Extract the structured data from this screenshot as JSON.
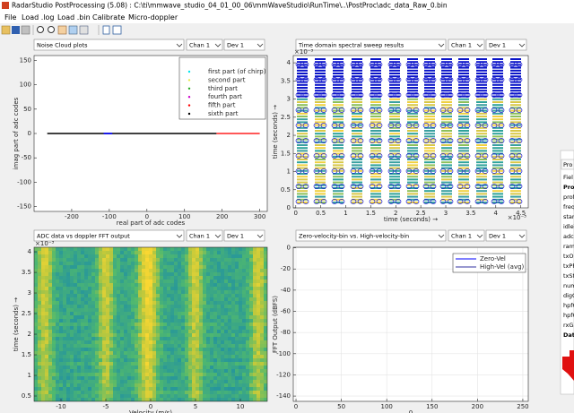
{
  "window": {
    "title": "RadarStudio PostProcessing (5.08) : C:\\ti\\mmwave_studio_04_01_00_06\\mmWaveStudio\\RunTime\\..\\PostProc\\adc_data_Raw_0.bin"
  },
  "menu": [
    "File",
    "Load .log",
    "Load .bin",
    "Calibrate",
    "Micro-doppler"
  ],
  "controls": [
    {
      "selector": "Noise Cloud plots",
      "channel": "Chan 1",
      "device": "Dev 1"
    },
    {
      "selector": "Time domain spectral sweep results",
      "channel": "Chan 1",
      "device": "Dev 1"
    },
    {
      "selector": "ADC data vs doppler FFT output",
      "channel": "Chan 1",
      "device": "Dev 1"
    },
    {
      "selector": "Zero-velocity-bin vs. High-velocity-bin",
      "channel": "Chan 1",
      "device": "Dev 1"
    }
  ],
  "chart_data": [
    {
      "type": "scatter",
      "xlabel": "real part of adc codes",
      "ylabel": "imag part of adc codes",
      "xlim": [
        -300,
        320
      ],
      "ylim": [
        -160,
        160
      ],
      "xticks": [
        -200,
        -100,
        0,
        100,
        200,
        300
      ],
      "yticks": [
        -150,
        -100,
        -50,
        0,
        50,
        100,
        150
      ],
      "legend_entries": [
        {
          "name": "first  part (of chirp)",
          "color": "#00e5ee"
        },
        {
          "name": "second part",
          "color": "#e8e84a"
        },
        {
          "name": "third part",
          "color": "#22aa22"
        },
        {
          "name": "fourth part",
          "color": "#cc00cc"
        },
        {
          "name": "fifth part",
          "color": "#ff0000"
        },
        {
          "name": "sixth part",
          "color": "#000000"
        }
      ],
      "segments": [
        {
          "color": "#000000",
          "x": [
            -265,
            185
          ]
        },
        {
          "color": "#0000ff",
          "x": [
            -115,
            -92
          ]
        },
        {
          "color": "#ff2020",
          "x": [
            185,
            300
          ]
        }
      ]
    },
    {
      "type": "heatmap",
      "xlabel": "time (seconds) →",
      "ylabel": "time (seconds) →",
      "x_exponent": "×10⁻³",
      "y_exponent": "×10⁻³",
      "xlim": [
        -0.05,
        4.65
      ],
      "ylim": [
        0,
        4.2
      ],
      "xticks": [
        0,
        0.5,
        1,
        1.5,
        2,
        2.5,
        3,
        3.5,
        4,
        4.5
      ],
      "yticks": [
        0,
        0.5,
        1,
        1.5,
        2,
        2.5,
        3,
        3.5,
        4
      ]
    },
    {
      "type": "heatmap",
      "xlabel": "Velocity (m/s)",
      "ylabel": "time (seconds) →",
      "y_exponent": "×10⁻³",
      "xlim": [
        -13,
        13
      ],
      "ylim": [
        0.37,
        4.11
      ],
      "xticks": [
        -10,
        -5,
        0,
        5,
        10
      ],
      "yticks": [
        0.5,
        1,
        1.5,
        2,
        2.5,
        3,
        3.5,
        4
      ]
    },
    {
      "type": "line",
      "xlabel": "0",
      "ylabel": "FFT Output (dBFS)",
      "grid": true,
      "xlim": [
        -3,
        256
      ],
      "ylim": [
        -145,
        0.5
      ],
      "xticks": [
        0,
        50,
        100,
        150,
        200,
        250
      ],
      "yticks": [
        -140,
        -120,
        -100,
        -80,
        -60,
        -40,
        -20,
        0
      ],
      "legend_entries": [
        {
          "name": "Zero-Vel",
          "color": "#0000ff"
        },
        {
          "name": "High-Vel (avg)",
          "color": "#3030a0"
        }
      ]
    }
  ],
  "side_panel": {
    "tab": "Pro",
    "rows": [
      "Fiel",
      "Prof",
      "prof",
      "freq",
      "start",
      "idleT",
      "adcs",
      "ramp",
      "txOu",
      "txPh",
      "txSt",
      "num",
      "digO",
      "hpfC",
      "hpfC",
      "rxGa",
      "Data"
    ]
  }
}
